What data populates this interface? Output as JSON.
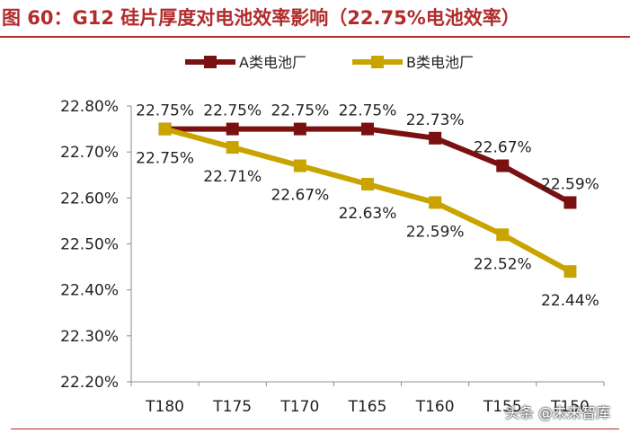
{
  "figure": {
    "title": "图 60：G12 硅片厚度对电池效率影响（22.75%电池效率）",
    "watermark": "头条 @未来智库"
  },
  "chart_data": {
    "type": "line",
    "categories": [
      "T180",
      "T175",
      "T170",
      "T165",
      "T160",
      "T155",
      "T150"
    ],
    "series": [
      {
        "name": "A类电池厂",
        "values": [
          22.75,
          22.75,
          22.75,
          22.75,
          22.73,
          22.67,
          22.59
        ],
        "color": "#7b1010",
        "labels": [
          "22.75%",
          "22.75%",
          "22.75%",
          "22.75%",
          "22.73%",
          "22.67%",
          "22.59%"
        ]
      },
      {
        "name": "B类电池厂",
        "values": [
          22.75,
          22.71,
          22.67,
          22.63,
          22.59,
          22.52,
          22.44
        ],
        "color": "#c9a400",
        "labels": [
          "22.75%",
          "22.71%",
          "22.67%",
          "22.63%",
          "22.59%",
          "22.52%",
          "22.44%"
        ]
      }
    ],
    "yticks": [
      "22.20%",
      "22.30%",
      "22.40%",
      "22.50%",
      "22.60%",
      "22.70%",
      "22.80%"
    ],
    "ylim": [
      22.2,
      22.8
    ],
    "xlabel": "",
    "ylabel": "",
    "grid": false,
    "legend": "top"
  }
}
